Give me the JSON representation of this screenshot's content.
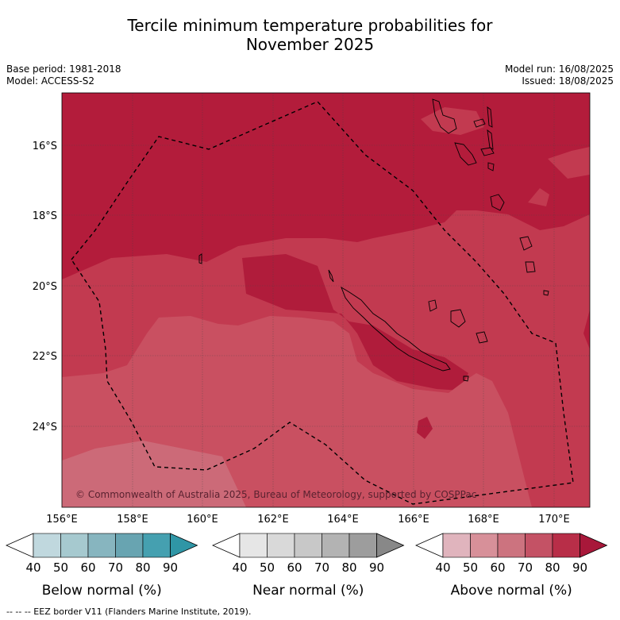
{
  "title_line1": "Tercile minimum temperature probabilities for",
  "title_line2": "November 2025",
  "base_period": "Base period: 1981-2018",
  "model": "Model: ACCESS-S2",
  "model_run": "Model run: 16/08/2025",
  "issued": "Issued: 18/08/2025",
  "copyright": "© Commonwealth of Australia 2025, Bureau of Meteorology, supported by COSPPac",
  "lat_labels": [
    "16°S",
    "18°S",
    "20°S",
    "22°S",
    "24°S"
  ],
  "lon_labels": [
    "156°E",
    "158°E",
    "160°E",
    "162°E",
    "164°E",
    "166°E",
    "168°E",
    "170°E"
  ],
  "colorbars": [
    {
      "label": "Below normal (%)",
      "ticks": [
        "40",
        "50",
        "60",
        "70",
        "80",
        "90"
      ],
      "colors": [
        "#c0d8de",
        "#a6c9cf",
        "#87b5bf",
        "#68a4b1",
        "#45a0b0",
        "#2f96a6"
      ]
    },
    {
      "label": "Near normal (%)",
      "ticks": [
        "40",
        "50",
        "60",
        "70",
        "80",
        "90"
      ],
      "colors": [
        "#e6e6e6",
        "#d9d9d9",
        "#c8c8c8",
        "#b3b3b3",
        "#9d9d9d",
        "#888888"
      ]
    },
    {
      "label": "Above normal (%)",
      "ticks": [
        "40",
        "50",
        "60",
        "70",
        "80",
        "90"
      ],
      "colors": [
        "#e0b4bd",
        "#d79099",
        "#cc737f",
        "#c45265",
        "#b82e48",
        "#a8183a"
      ]
    }
  ],
  "footer": "--  --  -- EEZ border V11 (Flanders Marine Institute, 2019)."
}
